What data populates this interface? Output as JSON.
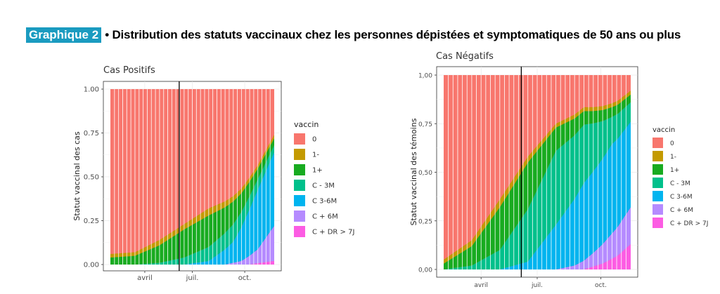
{
  "header": {
    "tag": "Graphique 2",
    "title": "• Distribution des statuts vaccinaux chez les personnes dépistées et symptomatiques de 50 ans ou plus"
  },
  "legend": {
    "title": "vaccin",
    "items": [
      {
        "label": "0",
        "color": "#f8766d"
      },
      {
        "label": "1-",
        "color": "#c49a00"
      },
      {
        "label": "1+",
        "color": "#18ab20"
      },
      {
        "label": "C - 3M",
        "color": "#00c08b"
      },
      {
        "label": "C 3-6M",
        "color": "#00b4ef"
      },
      {
        "label": "C + 6M",
        "color": "#b58bff"
      },
      {
        "label": "C + DR > 7J",
        "color": "#fc5ce3"
      }
    ]
  },
  "chart_data": [
    {
      "type": "area",
      "stacked": true,
      "title": "Cas Positifs",
      "ylabel": "Statut vaccinal des cas",
      "xlabel": "",
      "ylim": [
        0,
        1
      ],
      "yticks": [
        "0.00",
        "0.25",
        "0.50",
        "0.75",
        "1.00"
      ],
      "xticks": [
        "avril",
        "juil.",
        "oct."
      ],
      "vline_label": "juil.",
      "grid": true,
      "series": [
        {
          "name": "1-",
          "points": [
            [
              0,
              0.02
            ],
            [
              0.15,
              0.02
            ],
            [
              0.3,
              0.03
            ],
            [
              0.45,
              0.03
            ],
            [
              0.6,
              0.04
            ],
            [
              0.75,
              0.03
            ],
            [
              0.9,
              0.02
            ],
            [
              1,
              0.02
            ]
          ]
        },
        {
          "name": "1+",
          "points": [
            [
              0,
              0.04
            ],
            [
              0.15,
              0.05
            ],
            [
              0.3,
              0.1
            ],
            [
              0.45,
              0.16
            ],
            [
              0.6,
              0.18
            ],
            [
              0.75,
              0.13
            ],
            [
              0.9,
              0.06
            ],
            [
              1,
              0.04
            ]
          ]
        },
        {
          "name": "C - 3M",
          "points": [
            [
              0,
              0
            ],
            [
              0.15,
              0
            ],
            [
              0.3,
              0.01
            ],
            [
              0.45,
              0.04
            ],
            [
              0.6,
              0.08
            ],
            [
              0.75,
              0.1
            ],
            [
              0.9,
              0.06
            ],
            [
              1,
              0.04
            ]
          ]
        },
        {
          "name": "C 3-6M",
          "points": [
            [
              0,
              0
            ],
            [
              0.15,
              0
            ],
            [
              0.3,
              0
            ],
            [
              0.45,
              0
            ],
            [
              0.6,
              0.02
            ],
            [
              0.75,
              0.12
            ],
            [
              0.9,
              0.34
            ],
            [
              1,
              0.42
            ]
          ]
        },
        {
          "name": "C + 6M",
          "points": [
            [
              0,
              0
            ],
            [
              0.6,
              0
            ],
            [
              0.7,
              0
            ],
            [
              0.8,
              0.02
            ],
            [
              0.9,
              0.08
            ],
            [
              1,
              0.2
            ]
          ]
        },
        {
          "name": "C + DR > 7J",
          "points": [
            [
              0,
              0
            ],
            [
              0.85,
              0
            ],
            [
              0.92,
              0.01
            ],
            [
              1,
              0.02
            ]
          ]
        }
      ]
    },
    {
      "type": "area",
      "stacked": true,
      "title": "Cas Négatifs",
      "ylabel": "Statut vaccinal des témoins",
      "xlabel": "",
      "ylim": [
        0,
        1
      ],
      "yticks": [
        "0,00",
        "0,25",
        "0,50",
        "0,75",
        "1,00"
      ],
      "xticks": [
        "avril",
        "juil.",
        "oct."
      ],
      "vline_label": "juil.",
      "grid": true,
      "series": [
        {
          "name": "1-",
          "points": [
            [
              0,
              0.02
            ],
            [
              0.15,
              0.03
            ],
            [
              0.3,
              0.04
            ],
            [
              0.45,
              0.03
            ],
            [
              0.6,
              0.02
            ],
            [
              0.75,
              0.02
            ],
            [
              0.9,
              0.02
            ],
            [
              1,
              0.02
            ]
          ]
        },
        {
          "name": "1+",
          "points": [
            [
              0,
              0.03
            ],
            [
              0.15,
              0.1
            ],
            [
              0.3,
              0.22
            ],
            [
              0.45,
              0.24
            ],
            [
              0.6,
              0.12
            ],
            [
              0.75,
              0.07
            ],
            [
              0.9,
              0.05
            ],
            [
              1,
              0.04
            ]
          ]
        },
        {
          "name": "C - 3M",
          "points": [
            [
              0,
              0
            ],
            [
              0.15,
              0.02
            ],
            [
              0.3,
              0.1
            ],
            [
              0.45,
              0.27
            ],
            [
              0.6,
              0.38
            ],
            [
              0.75,
              0.3
            ],
            [
              0.9,
              0.14
            ],
            [
              1,
              0.1
            ]
          ]
        },
        {
          "name": "C 3-6M",
          "points": [
            [
              0,
              0
            ],
            [
              0.15,
              0
            ],
            [
              0.3,
              0
            ],
            [
              0.45,
              0.04
            ],
            [
              0.6,
              0.23
            ],
            [
              0.75,
              0.4
            ],
            [
              0.9,
              0.46
            ],
            [
              1,
              0.44
            ]
          ]
        },
        {
          "name": "C + 6M",
          "points": [
            [
              0,
              0
            ],
            [
              0.6,
              0
            ],
            [
              0.7,
              0.02
            ],
            [
              0.8,
              0.07
            ],
            [
              0.9,
              0.13
            ],
            [
              1,
              0.19
            ]
          ]
        },
        {
          "name": "C + DR > 7J",
          "points": [
            [
              0,
              0
            ],
            [
              0.75,
              0
            ],
            [
              0.85,
              0.03
            ],
            [
              0.93,
              0.07
            ],
            [
              1,
              0.13
            ]
          ]
        }
      ]
    }
  ]
}
